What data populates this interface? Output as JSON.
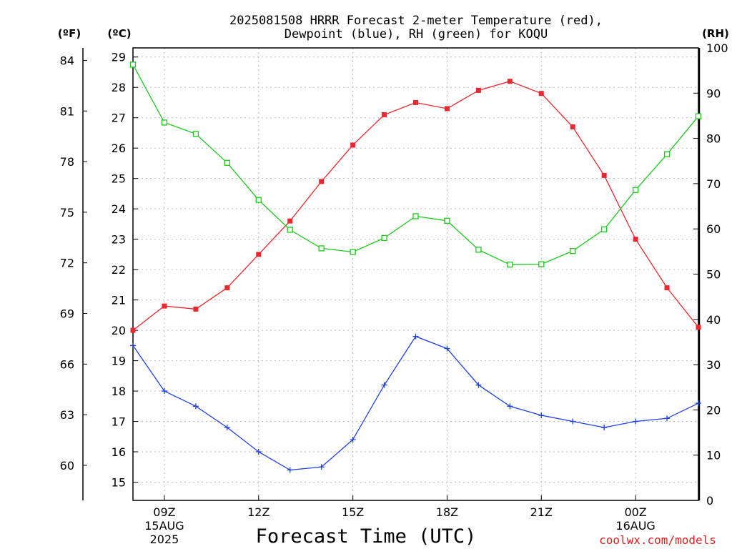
{
  "chart_data": {
    "type": "line",
    "title": [
      "2025081508 HRRR Forecast 2-meter Temperature (red),",
      "Dewpoint (blue), RH (green) for KOQU"
    ],
    "xlabel": "Forecast Time (UTC)",
    "unit_labels": {
      "fahrenheit": "(ºF)",
      "celsius": "(ºC)",
      "rh": "(RH)"
    },
    "x": [
      8,
      9,
      10,
      11,
      12,
      13,
      14,
      15,
      16,
      17,
      18,
      19,
      20,
      21,
      22,
      23,
      24,
      25,
      26
    ],
    "x_ticks": [
      {
        "x": 9,
        "lines": [
          "09Z",
          "15AUG",
          "2025"
        ]
      },
      {
        "x": 12,
        "lines": [
          "12Z"
        ]
      },
      {
        "x": 15,
        "lines": [
          "15Z"
        ]
      },
      {
        "x": 18,
        "lines": [
          "18Z"
        ]
      },
      {
        "x": 21,
        "lines": [
          "21Z"
        ]
      },
      {
        "x": 24,
        "lines": [
          "00Z",
          "16AUG"
        ]
      }
    ],
    "xlim": [
      8,
      26
    ],
    "ylim_celsius": [
      14.4,
      29.3
    ],
    "yticks_celsius": [
      15,
      16,
      17,
      18,
      19,
      20,
      21,
      22,
      23,
      24,
      25,
      26,
      27,
      28,
      29
    ],
    "yticks_fahrenheit": [
      60,
      63,
      66,
      69,
      72,
      75,
      78,
      81,
      84
    ],
    "ylim_rh": [
      0,
      100
    ],
    "yticks_rh": [
      0,
      10,
      20,
      30,
      40,
      50,
      60,
      70,
      80,
      90,
      100
    ],
    "grid": true,
    "series": [
      {
        "name": "Temperature",
        "axis": "celsius",
        "color": "#e8292f",
        "marker": "filled-square",
        "values": [
          20.0,
          20.8,
          20.7,
          21.4,
          22.5,
          23.6,
          24.9,
          26.1,
          27.1,
          27.5,
          27.3,
          27.9,
          28.2,
          27.8,
          26.7,
          25.1,
          23.0,
          21.4,
          20.1
        ]
      },
      {
        "name": "Dewpoint",
        "axis": "celsius",
        "color": "#2040e0",
        "marker": "plus",
        "values": [
          19.5,
          18.0,
          17.5,
          16.8,
          16.0,
          15.4,
          15.5,
          16.4,
          18.2,
          19.8,
          19.4,
          18.2,
          17.5,
          17.2,
          17.0,
          16.8,
          17.0,
          17.1,
          17.6
        ]
      },
      {
        "name": "RH",
        "axis": "rh",
        "color": "#1ec81e",
        "marker": "open-square",
        "values": [
          96.3,
          83.5,
          81.0,
          74.6,
          66.4,
          59.8,
          55.7,
          54.9,
          58.0,
          62.8,
          61.8,
          55.4,
          52.1,
          52.2,
          55.1,
          59.9,
          68.6,
          76.5,
          84.9
        ]
      }
    ],
    "colors": {
      "grid": "#bbbbbb",
      "axis": "#000000",
      "credit": "#d92020"
    }
  },
  "credit": "coolwx.com/models"
}
